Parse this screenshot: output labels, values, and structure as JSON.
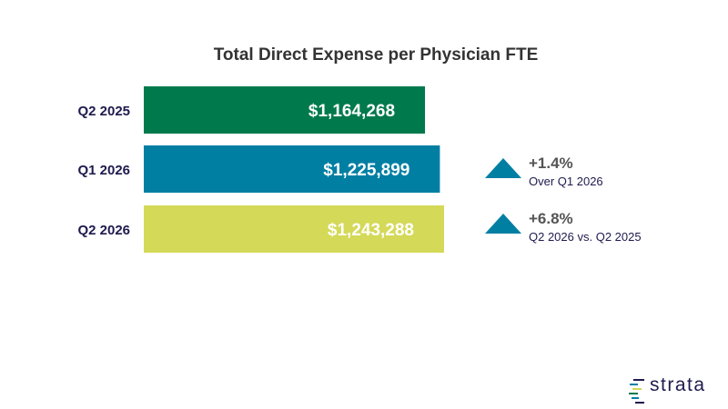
{
  "chart_data": {
    "type": "bar",
    "orientation": "horizontal",
    "title": "Total Direct Expense per Physician FTE",
    "categories": [
      "Q2 2025",
      "Q1 2026",
      "Q2 2026"
    ],
    "values": [
      1164268,
      1225899,
      1243288
    ],
    "value_labels": [
      "$1,164,268",
      "$1,225,899",
      "$1,243,288"
    ],
    "colors": [
      "#007a4c",
      "#007fa3",
      "#d4d958"
    ],
    "xlim": [
      0,
      1550000
    ],
    "grid": false
  },
  "changes": [
    {
      "pct": "+1.4%",
      "desc": "Over Q1 2026",
      "direction": "up",
      "color": "#007fa3"
    },
    {
      "pct": "+6.8%",
      "desc": "Q2 2026 vs. Q2 2025",
      "direction": "up",
      "color": "#007fa3"
    }
  ],
  "brand": {
    "name": "strata"
  }
}
